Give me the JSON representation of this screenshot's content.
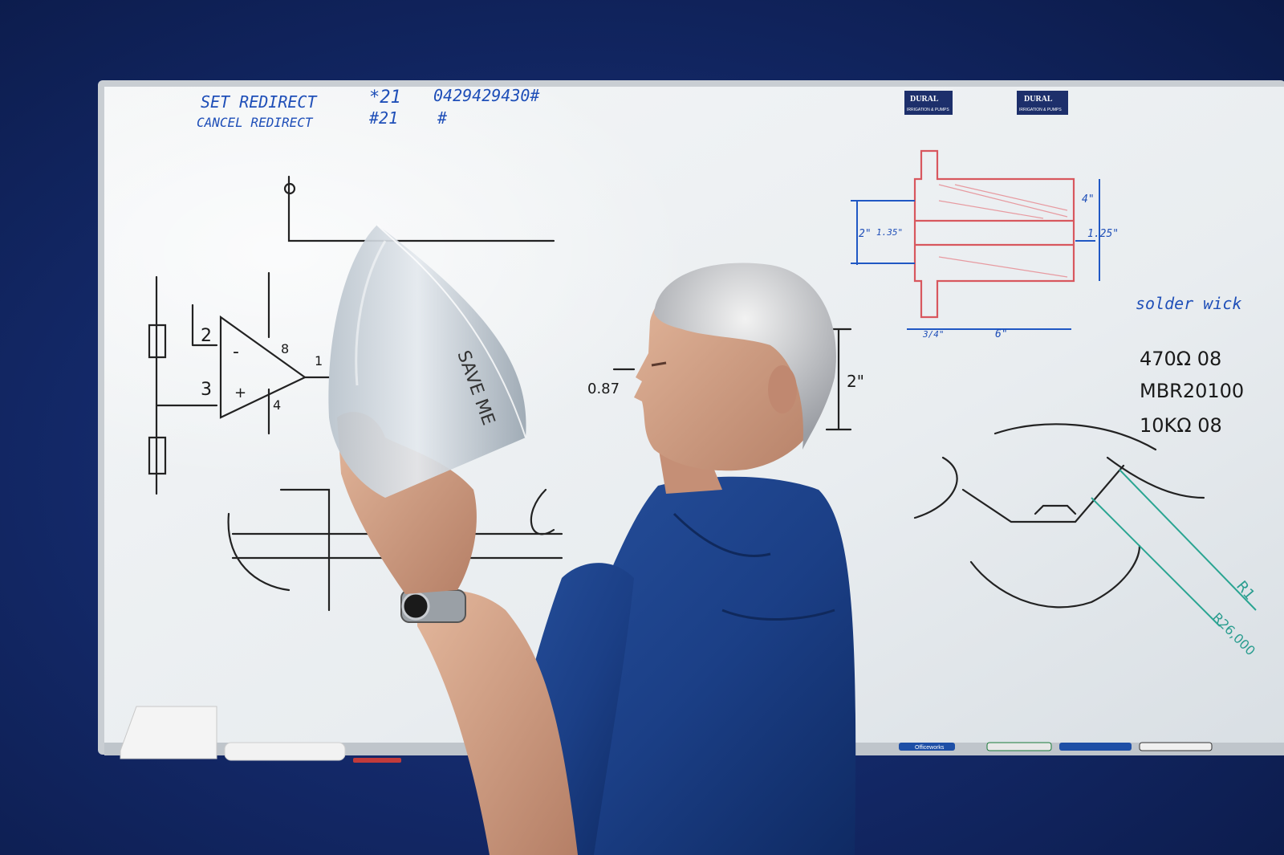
{
  "whiteboard": {
    "top_notes": [
      "SET REDIRECT",
      "*21",
      "0429429430#",
      "CANCEL REDIRECT",
      "#21",
      "#"
    ],
    "brand_sticker": {
      "name": "DURAL",
      "sub": "IRRIGATION & PUMPS"
    },
    "dimension_labels": [
      "4\"",
      "2\"",
      "1.35\"",
      "1.25\"",
      "3/4\"",
      "6\"",
      "0.87",
      "2\""
    ],
    "right_notes": [
      "solder wick",
      "470Ω 08",
      "MBR20100",
      "10KΩ 08"
    ],
    "circuit_labels": [
      "2",
      "3",
      "8",
      "1",
      "4",
      "-",
      "+"
    ],
    "radius_notes": [
      "R1",
      "R26,000"
    ],
    "lens_text": "SAVE ME",
    "marker_brand": "Officeworks"
  },
  "colors": {
    "wall": "#142a6b",
    "whiteboard": "#eef1f3",
    "shirt": "#1c3f86",
    "blue_ink": "#1f4fb8",
    "red_ink": "#d8575e",
    "teal_ink": "#2aa592"
  }
}
